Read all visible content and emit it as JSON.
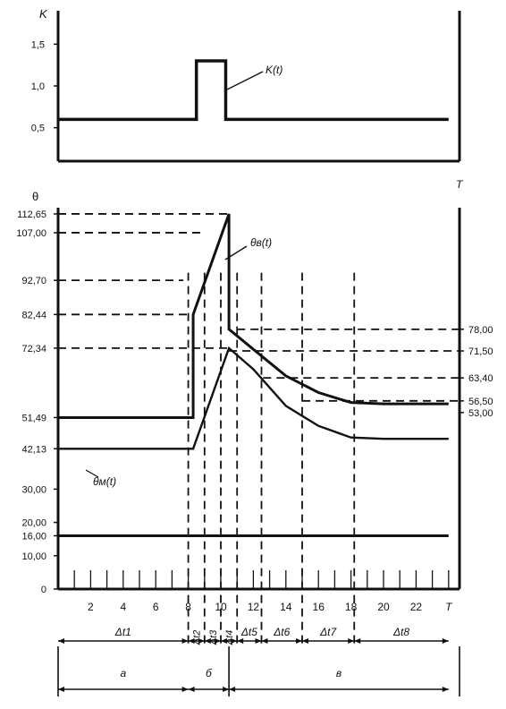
{
  "chart_data": [
    {
      "type": "line",
      "ylabel": "K",
      "yticks": [
        "1,5",
        "1,0",
        "0,5"
      ],
      "ylim": [
        0.1,
        1.9
      ],
      "series": [
        {
          "name": "K(t)",
          "points": [
            [
              0,
              0.6
            ],
            [
              8.5,
              0.6
            ],
            [
              8.5,
              1.3
            ],
            [
              10.3,
              1.3
            ],
            [
              10.3,
              0.6
            ],
            [
              24,
              0.6
            ]
          ]
        }
      ]
    },
    {
      "type": "line",
      "ylabel": "θ",
      "xlabel": "T",
      "xticks": [
        "2",
        "4",
        "6",
        "8",
        "10",
        "12",
        "14",
        "16",
        "18",
        "20",
        "22",
        "T"
      ],
      "yticks_left": [
        "112,65",
        "107,00",
        "92,70",
        "82,44",
        "72,34",
        "51,49",
        "42,13",
        "30,00",
        "20,00",
        "16,00",
        "10,00",
        "0"
      ],
      "yticks_right": [
        "78,00",
        "71,50",
        "63,40",
        "56,50",
        "53,00"
      ],
      "series": [
        {
          "name": "θв(t)",
          "points": [
            [
              0,
              51.49
            ],
            [
              8.3,
              51.49
            ],
            [
              8.3,
              82.44
            ],
            [
              10.5,
              112.65
            ],
            [
              10.5,
              78
            ],
            [
              12,
              72
            ],
            [
              14,
              64
            ],
            [
              16,
              59
            ],
            [
              18,
              56
            ],
            [
              20,
              55.6
            ],
            [
              22,
              55.6
            ],
            [
              24,
              55.6
            ]
          ]
        },
        {
          "name": "θм(t)",
          "points": [
            [
              0,
              42.13
            ],
            [
              8.3,
              42.13
            ],
            [
              10.5,
              72.34
            ],
            [
              12,
              66
            ],
            [
              14,
              55
            ],
            [
              16,
              49
            ],
            [
              18,
              45.5
            ],
            [
              20,
              45.1
            ],
            [
              24,
              45.1
            ]
          ]
        },
        {
          "name": "",
          "points": [
            [
              0,
              16
            ],
            [
              24,
              16
            ]
          ]
        }
      ],
      "intervals": [
        "Δt1",
        "Δt2",
        "Δt3",
        "Δt4",
        "Δt5",
        "Δt6",
        "Δt7",
        "Δt8"
      ],
      "phases": [
        "а",
        "б",
        "в"
      ]
    }
  ],
  "labels": {
    "k_axis": "K",
    "k_curve": "K(t)",
    "theta_axis": "θ",
    "t_axis_top": "T",
    "theta_v": "θв(t)",
    "theta_m": "θм(t)"
  }
}
